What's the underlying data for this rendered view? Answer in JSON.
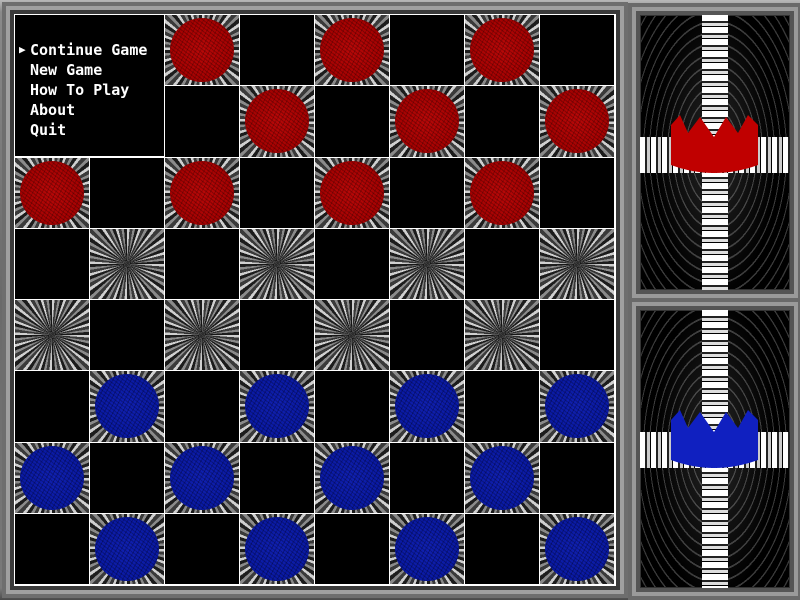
{
  "menu": {
    "selected_index": 0,
    "items": [
      {
        "label": "Continue Game"
      },
      {
        "label": "New Game"
      },
      {
        "label": "How To Play"
      },
      {
        "label": "About"
      },
      {
        "label": "Quit"
      }
    ]
  },
  "board": {
    "rows": [
      "..r.r.r.",
      "...r.r.r",
      "r.r.r.r.",
      "........",
      "........",
      ".b.b.b.b",
      "b.b.b.b.",
      ".b.b.b.b"
    ]
  },
  "side_panels": [
    {
      "player": "red",
      "icon": "crown-icon",
      "color": "#c00000"
    },
    {
      "player": "blue",
      "icon": "crown-icon",
      "color": "#1020c0"
    }
  ],
  "colors": {
    "red": "#c00000",
    "blue": "#1020c0"
  }
}
